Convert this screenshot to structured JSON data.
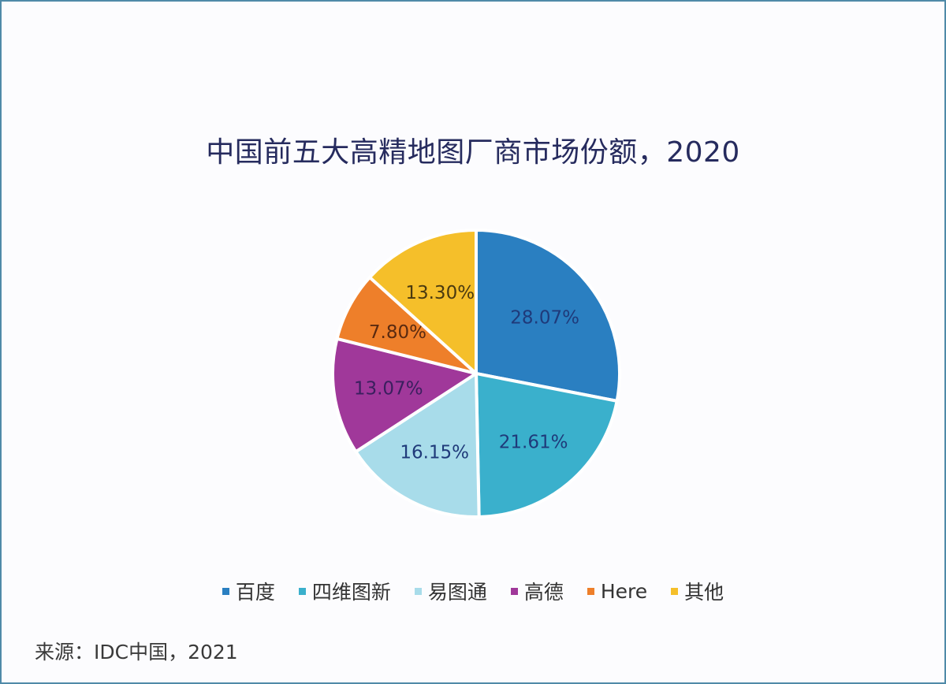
{
  "chart_data": {
    "type": "pie",
    "title": "中国前五大高精地图厂商市场份额，2020",
    "categories": [
      "百度",
      "四维图新",
      "易图通",
      "高德",
      "Here",
      "其他"
    ],
    "values": [
      28.07,
      21.61,
      16.15,
      13.07,
      7.8,
      13.3
    ],
    "labels": [
      "28.07%",
      "21.61%",
      "16.15%",
      "13.07%",
      "7.80%",
      "13.30%"
    ],
    "colors": [
      "#2a7fc1",
      "#3ab0cc",
      "#a8dcea",
      "#a0389a",
      "#ee7f2a",
      "#f5bf2a"
    ],
    "label_colors": [
      "#1f3a7a",
      "#1f3a7a",
      "#1f3a7a",
      "#3a1f5e",
      "#5a2a10",
      "#4a3a10"
    ],
    "legend_position": "bottom",
    "start_angle": "top-clockwise",
    "source": "来源：IDC中国，2021"
  },
  "header": {
    "title": "中国前五大高精地图厂商市场份额，2020"
  },
  "legend": {
    "items": [
      {
        "label": "百度",
        "color": "#2a7fc1"
      },
      {
        "label": "四维图新",
        "color": "#3ab0cc"
      },
      {
        "label": "易图通",
        "color": "#a8dcea"
      },
      {
        "label": "高德",
        "color": "#a0389a"
      },
      {
        "label": "Here",
        "color": "#ee7f2a"
      },
      {
        "label": "其他",
        "color": "#f5bf2a"
      }
    ]
  },
  "footer": {
    "source": "来源：IDC中国，2021"
  }
}
